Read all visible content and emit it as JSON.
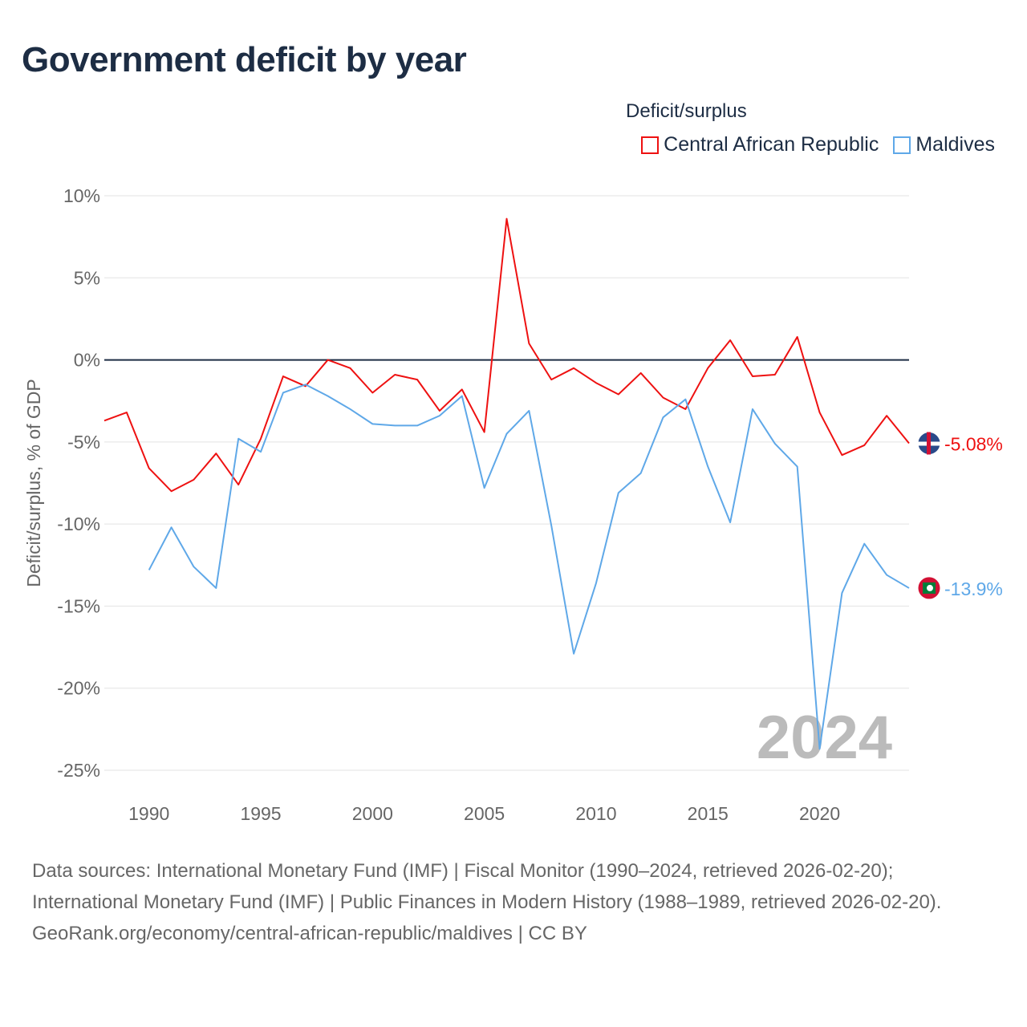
{
  "title": "Government deficit by year",
  "chart_data": {
    "type": "line",
    "title": "Government deficit by year",
    "ylabel": "Deficit/surplus, % of GDP",
    "xlabel": "",
    "legend_title": "Deficit/surplus",
    "legend_position": "top-right",
    "ylim": [
      -25,
      10
    ],
    "xlim": [
      1988,
      2024
    ],
    "yticks": [
      10,
      5,
      0,
      -5,
      -10,
      -15,
      -20,
      -25
    ],
    "ytick_labels": [
      "10%",
      "5%",
      "0%",
      "-5%",
      "-10%",
      "-15%",
      "-20%",
      "-25%"
    ],
    "xticks": [
      1990,
      1995,
      2000,
      2005,
      2010,
      2015,
      2020
    ],
    "xtick_labels": [
      "1990",
      "1995",
      "2000",
      "2005",
      "2010",
      "2015",
      "2020"
    ],
    "grid": true,
    "year_watermark": "2024",
    "series": [
      {
        "name": "Central African Republic",
        "color": "#ee1111",
        "end_label": "-5.08%",
        "x": [
          1988,
          1989,
          1990,
          1991,
          1992,
          1993,
          1994,
          1995,
          1996,
          1997,
          1998,
          1999,
          2000,
          2001,
          2002,
          2003,
          2004,
          2005,
          2006,
          2007,
          2008,
          2009,
          2010,
          2011,
          2012,
          2013,
          2014,
          2015,
          2016,
          2017,
          2018,
          2019,
          2020,
          2021,
          2022,
          2023,
          2024
        ],
        "values": [
          -3.7,
          -3.2,
          -6.6,
          -8.0,
          -7.3,
          -5.7,
          -7.6,
          -4.8,
          -1.0,
          -1.6,
          0.0,
          -0.5,
          -2.0,
          -0.9,
          -1.2,
          -3.1,
          -1.8,
          -4.4,
          8.6,
          1.0,
          -1.2,
          -0.5,
          -1.4,
          -2.1,
          -0.8,
          -2.3,
          -3.0,
          -0.5,
          1.2,
          -1.0,
          -0.9,
          1.4,
          -3.2,
          -5.8,
          -5.2,
          -3.4,
          -5.08
        ]
      },
      {
        "name": "Maldives",
        "color": "#5fa8e8",
        "end_label": "-13.9%",
        "x": [
          1990,
          1991,
          1992,
          1993,
          1994,
          1995,
          1996,
          1997,
          1998,
          1999,
          2000,
          2001,
          2002,
          2003,
          2004,
          2005,
          2006,
          2007,
          2008,
          2009,
          2010,
          2011,
          2012,
          2013,
          2014,
          2015,
          2016,
          2017,
          2018,
          2019,
          2020,
          2021,
          2022,
          2023,
          2024
        ],
        "values": [
          -12.8,
          -10.2,
          -12.6,
          -13.9,
          -4.8,
          -5.6,
          -2.0,
          -1.5,
          -2.2,
          -3.0,
          -3.9,
          -4.0,
          -4.0,
          -3.4,
          -2.2,
          -7.8,
          -4.5,
          -3.1,
          -10.1,
          -17.9,
          -13.6,
          -8.1,
          -6.9,
          -3.5,
          -2.4,
          -6.5,
          -9.9,
          -3.0,
          -5.1,
          -6.5,
          -23.7,
          -14.2,
          -11.2,
          -13.1,
          -13.9
        ]
      }
    ]
  },
  "footer": {
    "sources": "Data sources: International Monetary Fund (IMF) | Fiscal Monitor (1990–2024, retrieved 2026-02-20); International Monetary Fund (IMF) | Public Finances in Modern History (1988–1989, retrieved 2026-02-20).",
    "link": "GeoRank.org/economy/central-african-republic/maldives | CC BY"
  }
}
